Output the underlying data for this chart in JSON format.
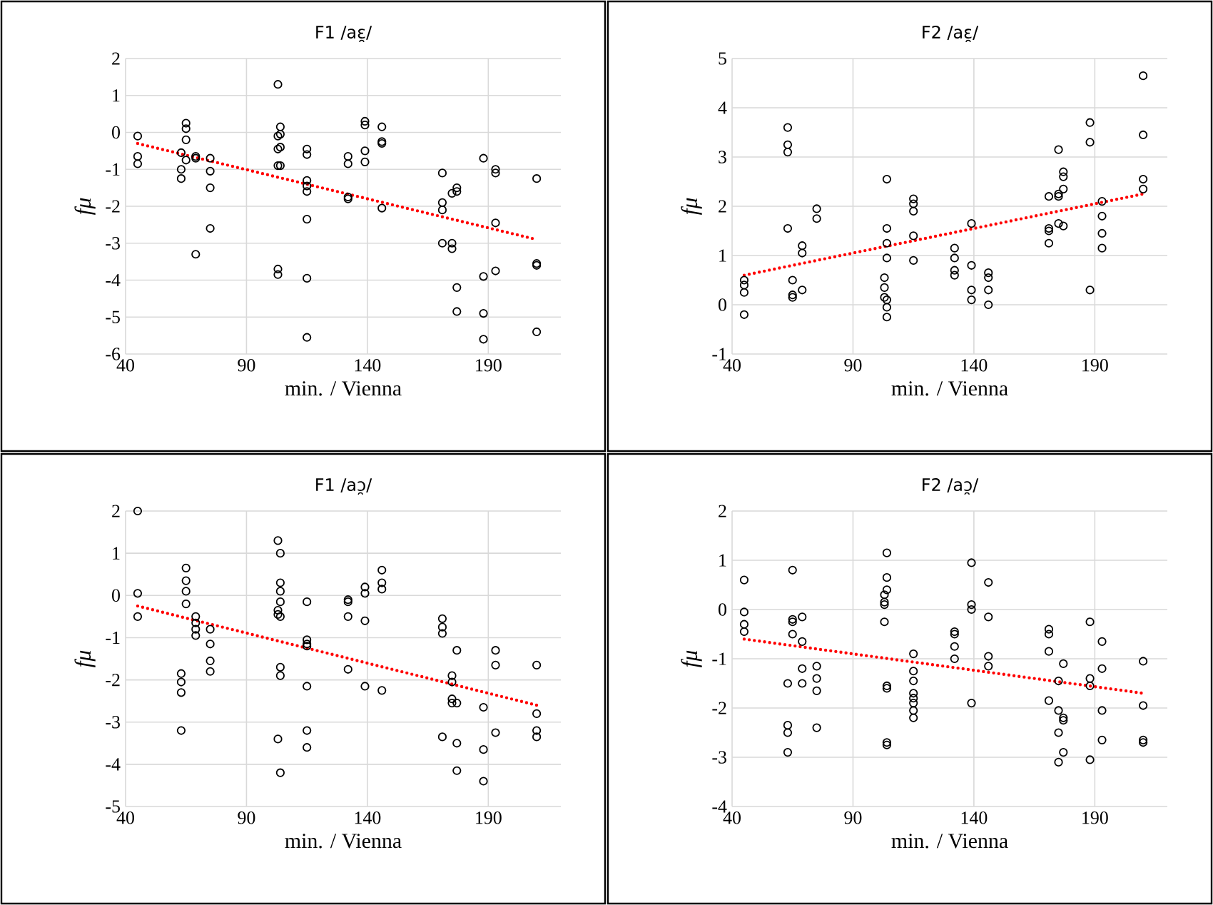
{
  "chart_data": [
    {
      "type": "scatter",
      "title": "F1 /aɛ̯/",
      "xlabel": "min. / Vienna",
      "ylabel": "fμ",
      "xlim": [
        40,
        220
      ],
      "xticks": [
        40,
        90,
        140,
        190
      ],
      "ylim": [
        -6,
        2
      ],
      "yticks": [
        -6,
        -5,
        -4,
        -3,
        -2,
        -1,
        0,
        1,
        2
      ],
      "grid": true,
      "marker": "circle",
      "series": [
        {
          "type": "scatter",
          "color": "#000000",
          "x": [
            45,
            45,
            45,
            63,
            63,
            63,
            65,
            65,
            65,
            65,
            69,
            69,
            69,
            75,
            75,
            75,
            75,
            103,
            103,
            103,
            103,
            103,
            103,
            104,
            104,
            104,
            104,
            115,
            115,
            115,
            115,
            115,
            115,
            115,
            115,
            132,
            132,
            132,
            132,
            139,
            139,
            139,
            139,
            146,
            146,
            146,
            146,
            171,
            171,
            171,
            171,
            175,
            175,
            175,
            177,
            177,
            177,
            177,
            188,
            188,
            188,
            188,
            193,
            193,
            193,
            193,
            210,
            210,
            210,
            210
          ],
          "values": [
            -0.1,
            -0.65,
            -0.85,
            -0.55,
            -1.0,
            -1.25,
            0.25,
            0.1,
            -0.2,
            -0.75,
            -0.65,
            -0.7,
            -3.3,
            -0.7,
            -1.05,
            -1.5,
            -2.6,
            1.3,
            -0.1,
            -0.45,
            -0.9,
            -3.7,
            -3.85,
            0.15,
            -0.05,
            -0.4,
            -0.9,
            -0.45,
            -0.6,
            -1.3,
            -1.45,
            -1.6,
            -2.35,
            -3.95,
            -5.55,
            -0.65,
            -0.85,
            -1.75,
            -1.8,
            0.3,
            0.2,
            -0.5,
            -0.8,
            0.15,
            -0.25,
            -0.3,
            -2.05,
            -1.1,
            -1.9,
            -2.1,
            -3.0,
            -1.65,
            -3.0,
            -3.15,
            -1.5,
            -1.6,
            -4.2,
            -4.85,
            -0.7,
            -3.9,
            -4.9,
            -5.6,
            -1.0,
            -1.1,
            -2.45,
            -3.75,
            -1.25,
            -3.55,
            -3.6,
            -5.4
          ]
        },
        {
          "type": "line",
          "color": "#ff0000",
          "line_style": "dotted",
          "marker": "none",
          "x": [
            45,
            210
          ],
          "values": [
            -0.3,
            -2.9
          ]
        }
      ]
    },
    {
      "type": "scatter",
      "title": "F2 /aɛ̯/",
      "xlabel": "min. / Vienna",
      "ylabel": "fμ",
      "xlim": [
        40,
        220
      ],
      "xticks": [
        40,
        90,
        140,
        190
      ],
      "ylim": [
        -1,
        5
      ],
      "yticks": [
        -1,
        0,
        1,
        2,
        3,
        4,
        5
      ],
      "grid": true,
      "marker": "circle",
      "series": [
        {
          "type": "scatter",
          "color": "#000000",
          "x": [
            45,
            45,
            45,
            45,
            63,
            63,
            63,
            63,
            65,
            65,
            65,
            69,
            69,
            69,
            75,
            75,
            103,
            103,
            103,
            104,
            104,
            104,
            104,
            104,
            104,
            104,
            115,
            115,
            115,
            115,
            115,
            132,
            132,
            132,
            132,
            139,
            139,
            139,
            139,
            146,
            146,
            146,
            146,
            171,
            171,
            171,
            171,
            175,
            175,
            175,
            175,
            177,
            177,
            177,
            177,
            188,
            188,
            188,
            193,
            193,
            193,
            193,
            210,
            210,
            210,
            210
          ],
          "values": [
            0.5,
            0.4,
            0.25,
            -0.2,
            3.6,
            3.25,
            3.1,
            1.55,
            0.5,
            0.2,
            0.15,
            1.2,
            1.05,
            0.3,
            1.95,
            1.75,
            0.55,
            0.35,
            0.15,
            2.55,
            1.55,
            1.25,
            0.95,
            0.1,
            -0.05,
            -0.25,
            2.15,
            2.05,
            1.9,
            1.4,
            0.9,
            1.15,
            0.95,
            0.7,
            0.6,
            1.65,
            0.8,
            0.3,
            0.1,
            0.65,
            0.55,
            0.3,
            0.0,
            2.2,
            1.55,
            1.5,
            1.25,
            3.15,
            2.25,
            2.2,
            1.65,
            2.7,
            2.6,
            2.35,
            1.6,
            3.7,
            3.3,
            0.3,
            2.1,
            1.8,
            1.45,
            1.15,
            4.65,
            3.45,
            2.55,
            2.35
          ]
        },
        {
          "type": "line",
          "color": "#ff0000",
          "line_style": "dotted",
          "marker": "none",
          "x": [
            45,
            210
          ],
          "values": [
            0.6,
            2.25
          ]
        }
      ]
    },
    {
      "type": "scatter",
      "title": "F1 /aɔ̯/",
      "xlabel": "min. / Vienna",
      "ylabel": "fμ",
      "xlim": [
        40,
        220
      ],
      "xticks": [
        40,
        90,
        140,
        190
      ],
      "ylim": [
        -5,
        2
      ],
      "yticks": [
        -5,
        -4,
        -3,
        -2,
        -1,
        0,
        1,
        2
      ],
      "grid": true,
      "marker": "circle",
      "series": [
        {
          "type": "scatter",
          "color": "#000000",
          "x": [
            45,
            45,
            45,
            63,
            63,
            63,
            63,
            65,
            65,
            65,
            65,
            69,
            69,
            69,
            69,
            75,
            75,
            75,
            75,
            103,
            103,
            103,
            103,
            104,
            104,
            104,
            104,
            104,
            104,
            104,
            104,
            115,
            115,
            115,
            115,
            115,
            115,
            115,
            132,
            132,
            132,
            132,
            139,
            139,
            139,
            139,
            146,
            146,
            146,
            146,
            171,
            171,
            171,
            171,
            175,
            175,
            175,
            175,
            177,
            177,
            177,
            177,
            188,
            188,
            188,
            193,
            193,
            193,
            210,
            210,
            210,
            210
          ],
          "values": [
            2.0,
            0.05,
            -0.5,
            -1.85,
            -2.05,
            -2.3,
            -3.2,
            0.65,
            0.35,
            0.1,
            -0.2,
            -0.5,
            -0.65,
            -0.8,
            -0.95,
            -0.8,
            -1.15,
            -1.55,
            -1.8,
            1.3,
            -0.35,
            -0.45,
            -3.4,
            1.0,
            0.3,
            0.1,
            -0.15,
            -0.5,
            -1.7,
            -1.9,
            -4.2,
            -0.15,
            -1.05,
            -1.15,
            -1.2,
            -2.15,
            -3.2,
            -3.6,
            -0.1,
            -0.15,
            -0.5,
            -1.75,
            0.2,
            0.05,
            -0.6,
            -2.15,
            0.6,
            0.3,
            0.15,
            -2.25,
            -0.55,
            -0.75,
            -0.9,
            -3.35,
            -1.9,
            -2.05,
            -2.45,
            -2.55,
            -1.3,
            -2.55,
            -3.5,
            -4.15,
            -2.65,
            -3.65,
            -4.4,
            -1.3,
            -1.65,
            -3.25,
            -1.65,
            -2.8,
            -3.2,
            -3.35
          ]
        },
        {
          "type": "line",
          "color": "#ff0000",
          "line_style": "dotted",
          "marker": "none",
          "x": [
            45,
            210
          ],
          "values": [
            -0.25,
            -2.6
          ]
        }
      ]
    },
    {
      "type": "scatter",
      "title": "F2 /aɔ̯/",
      "xlabel": "min. / Vienna",
      "ylabel": "fμ",
      "xlim": [
        40,
        220
      ],
      "xticks": [
        40,
        90,
        140,
        190
      ],
      "ylim": [
        -4,
        2
      ],
      "yticks": [
        -4,
        -3,
        -2,
        -1,
        0,
        1,
        2
      ],
      "grid": true,
      "marker": "circle",
      "series": [
        {
          "type": "scatter",
          "color": "#000000",
          "x": [
            45,
            45,
            45,
            45,
            63,
            63,
            63,
            63,
            65,
            65,
            65,
            65,
            69,
            69,
            69,
            69,
            75,
            75,
            75,
            75,
            103,
            103,
            103,
            103,
            104,
            104,
            104,
            104,
            104,
            104,
            104,
            115,
            115,
            115,
            115,
            115,
            115,
            115,
            115,
            132,
            132,
            132,
            132,
            139,
            139,
            139,
            139,
            146,
            146,
            146,
            146,
            171,
            171,
            171,
            171,
            175,
            175,
            175,
            175,
            177,
            177,
            177,
            177,
            188,
            188,
            188,
            188,
            193,
            193,
            193,
            193,
            210,
            210,
            210,
            210
          ],
          "values": [
            0.6,
            -0.05,
            -0.3,
            -0.45,
            -1.5,
            -2.35,
            -2.5,
            -2.9,
            0.8,
            -0.2,
            -0.25,
            -0.5,
            -0.15,
            -0.65,
            -1.2,
            -1.5,
            -1.15,
            -1.4,
            -1.65,
            -2.4,
            0.3,
            0.15,
            0.1,
            -0.25,
            1.15,
            0.65,
            0.4,
            -1.55,
            -1.6,
            -2.7,
            -2.75,
            -0.9,
            -1.25,
            -1.45,
            -1.7,
            -1.8,
            -1.9,
            -2.05,
            -2.2,
            -0.45,
            -0.5,
            -0.75,
            -1.0,
            0.95,
            0.1,
            0.0,
            -1.9,
            0.55,
            -0.15,
            -0.95,
            -1.15,
            -0.4,
            -0.5,
            -0.85,
            -1.85,
            -1.45,
            -2.05,
            -2.5,
            -3.1,
            -1.1,
            -2.2,
            -2.25,
            -2.9,
            -0.25,
            -1.4,
            -1.55,
            -3.05,
            -0.65,
            -1.2,
            -2.05,
            -2.65,
            -1.05,
            -1.95,
            -2.65,
            -2.7
          ]
        },
        {
          "type": "line",
          "color": "#ff0000",
          "line_style": "dotted",
          "marker": "none",
          "x": [
            45,
            210
          ],
          "values": [
            -0.6,
            -1.7
          ]
        }
      ]
    }
  ]
}
